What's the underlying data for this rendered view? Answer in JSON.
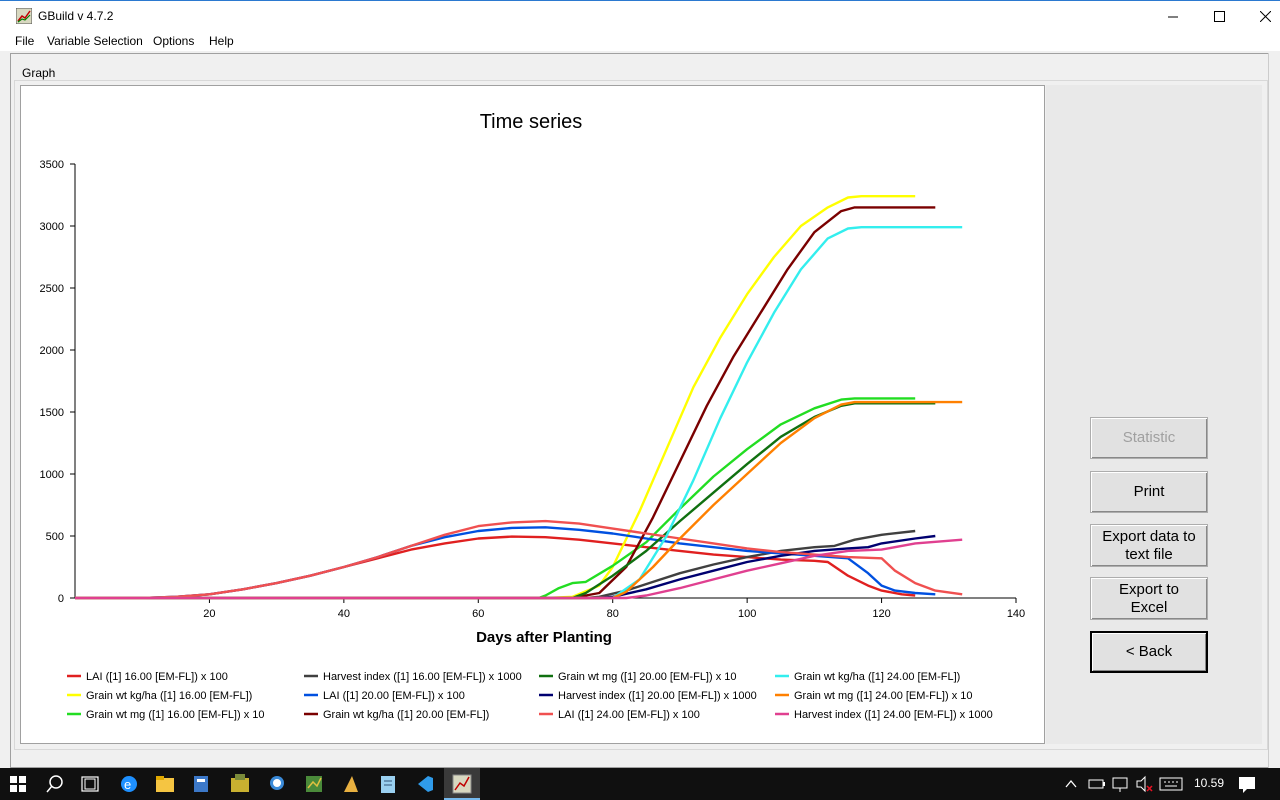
{
  "window": {
    "title": "GBuild v 4.7.2",
    "min_icon": "minimize-icon",
    "max_icon": "maximize-icon",
    "close_icon": "close-icon"
  },
  "menu": [
    "File",
    "Variable Selection",
    "Options",
    "Help"
  ],
  "graph_label": "Graph",
  "buttons": {
    "statistic": "Statistic",
    "print": "Print",
    "export_text_1": "Export data to",
    "export_text_2": "text file",
    "export_excel_1": "Export to",
    "export_excel_2": "Excel",
    "back": "< Back"
  },
  "taskbar": {
    "icons": [
      "windows-start-icon",
      "search-icon",
      "task-view-icon",
      "edge-icon",
      "file-explorer-icon",
      "app-icon-1",
      "app-icon-2",
      "magnifier-icon",
      "app-icon-3",
      "app-icon-4",
      "notepad-icon",
      "vscode-icon",
      "gbuild-icon"
    ],
    "time": "10.59"
  },
  "chart_data": {
    "type": "line",
    "title": "Time series",
    "xlabel": "Days after Planting",
    "ylabel": "",
    "xlim": [
      0,
      140
    ],
    "ylim": [
      0,
      3500
    ],
    "xticks": [
      20,
      40,
      60,
      80,
      100,
      120,
      140
    ],
    "yticks": [
      0,
      500,
      1000,
      1500,
      2000,
      2500,
      3000,
      3500
    ],
    "grid": false,
    "legend_position": "bottom",
    "series": [
      {
        "name": "LAI ([1]  16.00 [EM-FL]) x 100",
        "color": "#e02020",
        "x": [
          0,
          10,
          15,
          20,
          25,
          30,
          35,
          40,
          45,
          50,
          55,
          60,
          65,
          70,
          75,
          80,
          85,
          90,
          95,
          100,
          105,
          110,
          112,
          115,
          118,
          120,
          123,
          125
        ],
        "y": [
          0,
          0,
          10,
          30,
          70,
          120,
          180,
          250,
          320,
          390,
          440,
          480,
          495,
          490,
          470,
          440,
          410,
          380,
          350,
          330,
          310,
          300,
          290,
          180,
          100,
          60,
          30,
          20
        ]
      },
      {
        "name": "Grain wt kg/ha ([1]  16.00 [EM-FL])",
        "color": "#ffff00",
        "x": [
          0,
          70,
          74,
          78,
          80,
          84,
          88,
          92,
          96,
          100,
          104,
          108,
          112,
          115,
          117,
          120,
          125
        ],
        "y": [
          0,
          0,
          10,
          100,
          250,
          700,
          1200,
          1700,
          2100,
          2450,
          2750,
          3000,
          3150,
          3230,
          3240,
          3240,
          3240
        ]
      },
      {
        "name": "Grain wt mg ([1]  16.00 [EM-FL]) x 10",
        "color": "#22dd22",
        "x": [
          0,
          69,
          70,
          72,
          74,
          76,
          80,
          85,
          90,
          95,
          100,
          105,
          110,
          114,
          116,
          120,
          125
        ],
        "y": [
          0,
          0,
          20,
          80,
          120,
          130,
          260,
          450,
          720,
          980,
          1200,
          1400,
          1530,
          1600,
          1610,
          1610,
          1610
        ]
      },
      {
        "name": "Harvest index ([1]  16.00 [EM-FL]) x 1000",
        "color": "#404040",
        "x": [
          0,
          76,
          78,
          82,
          86,
          90,
          95,
          100,
          105,
          110,
          113,
          116,
          120,
          125
        ],
        "y": [
          0,
          0,
          10,
          60,
          130,
          200,
          270,
          330,
          380,
          410,
          420,
          470,
          510,
          540
        ]
      },
      {
        "name": "LAI ([1]  20.00 [EM-FL]) x 100",
        "color": "#0050e0",
        "x": [
          0,
          10,
          15,
          20,
          25,
          30,
          35,
          40,
          45,
          50,
          55,
          60,
          65,
          70,
          75,
          80,
          85,
          90,
          95,
          100,
          105,
          110,
          115,
          118,
          120,
          122,
          125,
          128
        ],
        "y": [
          0,
          0,
          10,
          30,
          70,
          120,
          180,
          250,
          330,
          420,
          490,
          540,
          565,
          570,
          550,
          520,
          480,
          440,
          410,
          380,
          360,
          340,
          320,
          200,
          100,
          60,
          40,
          30
        ]
      },
      {
        "name": "Grain wt kg/ha ([1]  20.00 [EM-FL])",
        "color": "#7a0000",
        "x": [
          0,
          74,
          78,
          82,
          86,
          90,
          94,
          98,
          102,
          106,
          110,
          114,
          116,
          120,
          128
        ],
        "y": [
          0,
          0,
          40,
          250,
          650,
          1100,
          1550,
          1950,
          2300,
          2650,
          2950,
          3120,
          3150,
          3150,
          3150
        ]
      },
      {
        "name": "Grain wt mg ([1]  20.00 [EM-FL]) x 10",
        "color": "#107010",
        "x": [
          0,
          74,
          76,
          80,
          85,
          90,
          95,
          100,
          105,
          110,
          114,
          116,
          120,
          128
        ],
        "y": [
          0,
          0,
          40,
          180,
          380,
          620,
          850,
          1080,
          1300,
          1460,
          1550,
          1570,
          1570,
          1570
        ]
      },
      {
        "name": "Harvest index ([1]  20.00 [EM-FL]) x 1000",
        "color": "#000070",
        "x": [
          0,
          78,
          80,
          85,
          90,
          95,
          100,
          105,
          110,
          115,
          118,
          120,
          125,
          128
        ],
        "y": [
          0,
          0,
          10,
          70,
          150,
          220,
          290,
          340,
          380,
          400,
          410,
          440,
          480,
          500
        ]
      },
      {
        "name": "LAI ([1]  24.00 [EM-FL]) x 100",
        "color": "#f05050",
        "x": [
          0,
          10,
          15,
          20,
          25,
          30,
          35,
          40,
          45,
          50,
          55,
          60,
          65,
          70,
          75,
          80,
          85,
          90,
          95,
          100,
          105,
          110,
          115,
          120,
          122,
          125,
          128,
          132
        ],
        "y": [
          0,
          0,
          10,
          30,
          70,
          120,
          180,
          250,
          330,
          420,
          510,
          580,
          610,
          620,
          600,
          560,
          520,
          480,
          440,
          400,
          370,
          350,
          330,
          320,
          220,
          120,
          60,
          30
        ]
      },
      {
        "name": "Grain wt kg/ha ([1]  24.00 [EM-FL])",
        "color": "#33eeee",
        "x": [
          0,
          80,
          84,
          88,
          92,
          96,
          100,
          104,
          108,
          112,
          115,
          117,
          120,
          132
        ],
        "y": [
          0,
          0,
          150,
          500,
          950,
          1450,
          1900,
          2300,
          2650,
          2900,
          2980,
          2990,
          2990,
          2990
        ]
      },
      {
        "name": "Grain wt mg ([1]  24.00 [EM-FL]) x 10",
        "color": "#ff8000",
        "x": [
          0,
          80,
          82,
          86,
          90,
          95,
          100,
          105,
          110,
          114,
          116,
          120,
          132
        ],
        "y": [
          0,
          0,
          50,
          250,
          480,
          750,
          1000,
          1250,
          1450,
          1560,
          1580,
          1580,
          1580
        ]
      },
      {
        "name": "Harvest index ([1]  24.00 [EM-FL]) x 1000",
        "color": "#e04090",
        "x": [
          0,
          82,
          85,
          90,
          95,
          100,
          105,
          110,
          115,
          120,
          125,
          132
        ],
        "y": [
          0,
          0,
          20,
          80,
          150,
          220,
          280,
          340,
          380,
          390,
          440,
          470
        ]
      }
    ]
  }
}
